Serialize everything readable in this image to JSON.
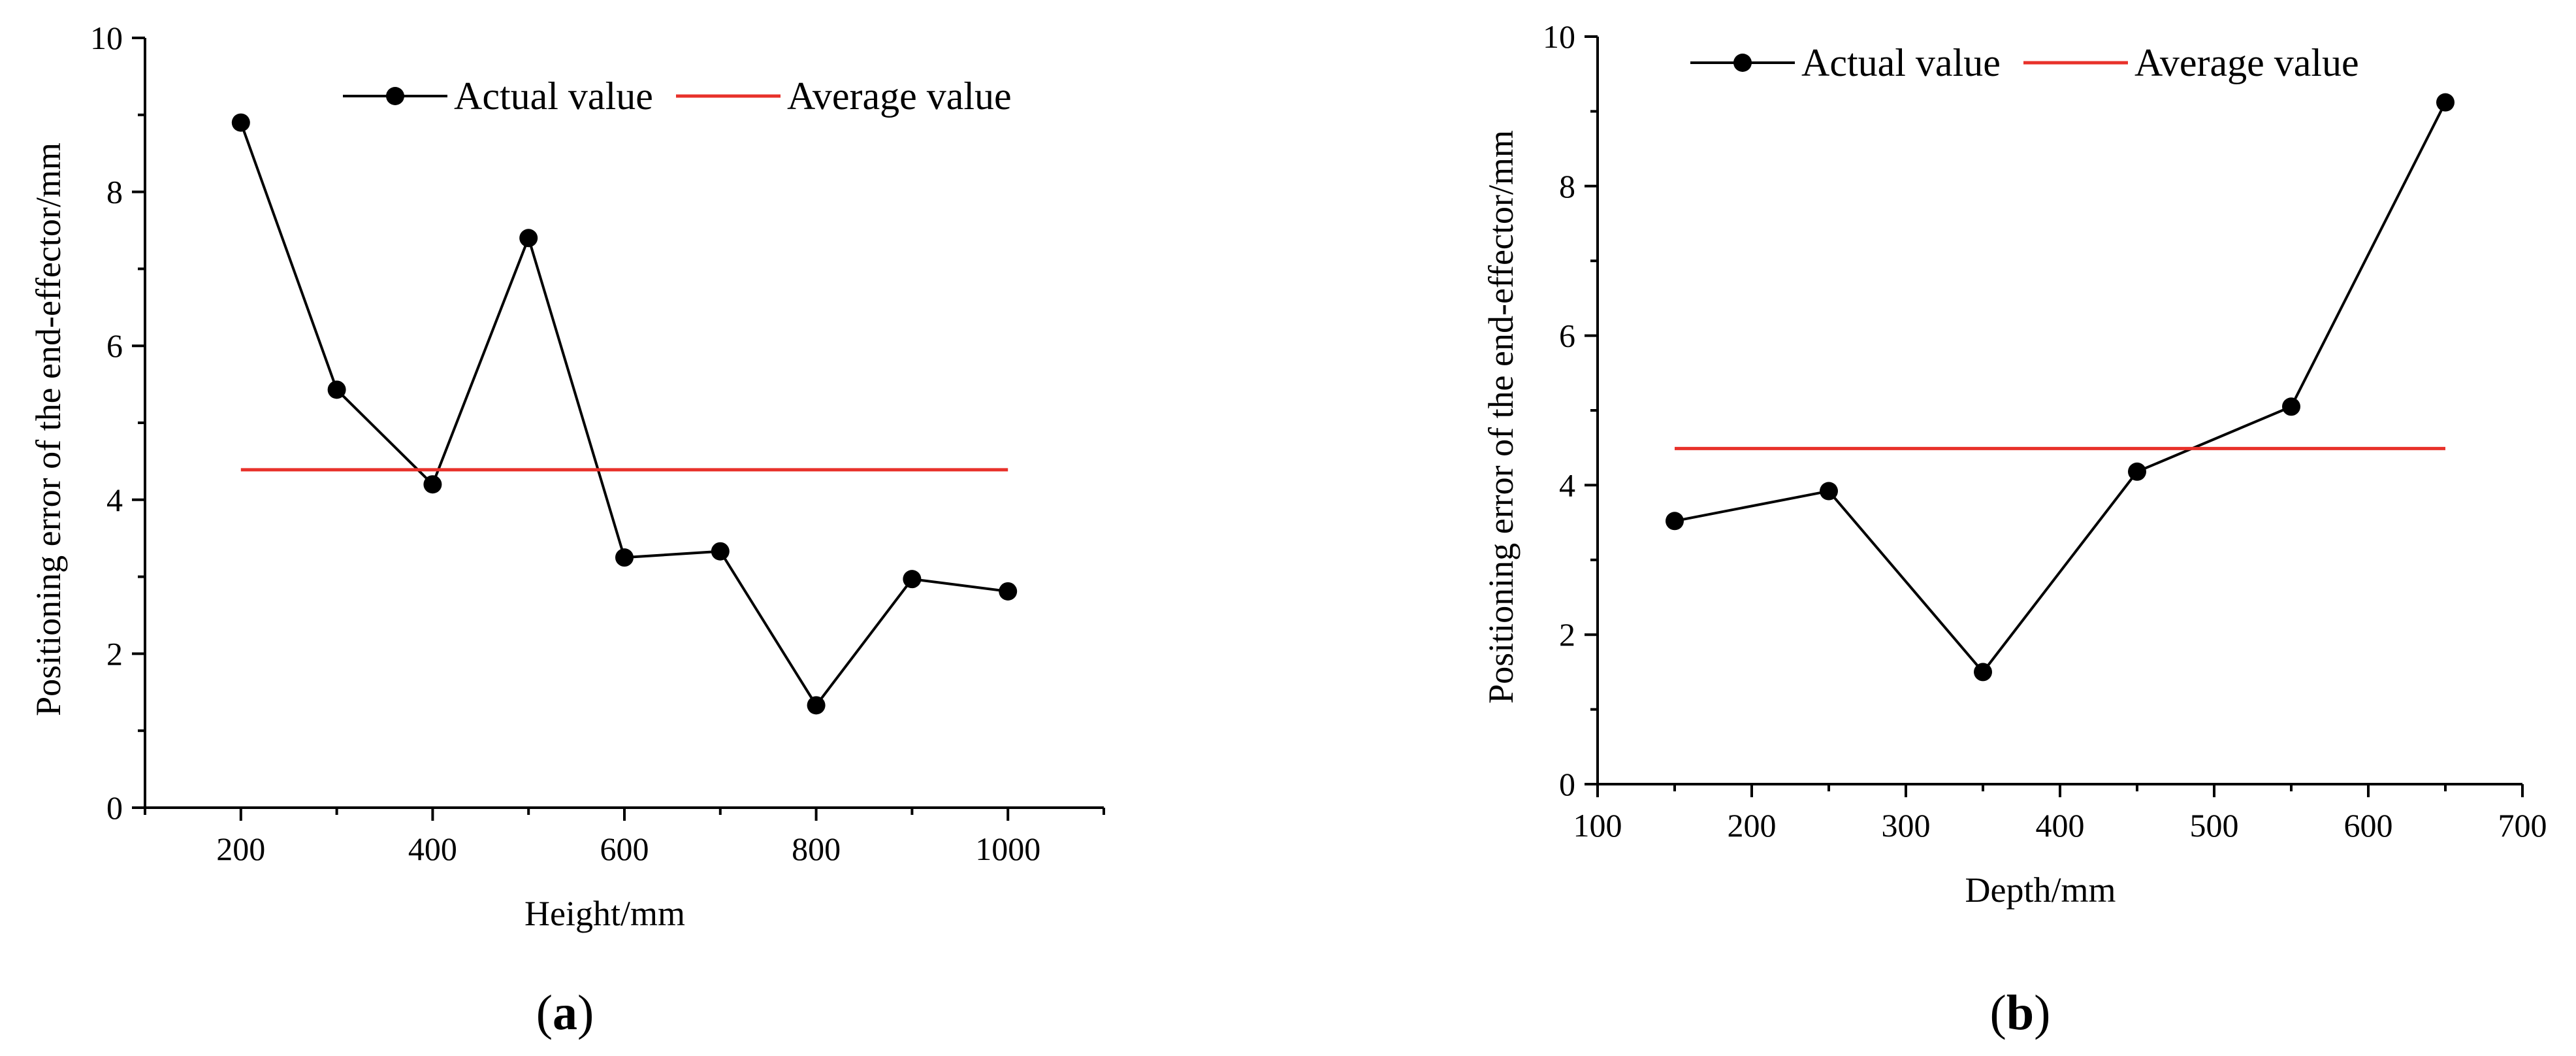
{
  "chart_data": [
    {
      "type": "line",
      "panel_label": {
        "open": "(",
        "letter": "a",
        "close": ")"
      },
      "xlabel": "Height/mm",
      "ylabel": "Positioning error of the end-effector/mm",
      "xlim": [
        100,
        1100
      ],
      "ylim": [
        0,
        10
      ],
      "xticks": [
        200,
        400,
        600,
        800,
        1000
      ],
      "xminor": [
        100,
        300,
        500,
        700,
        900,
        1100
      ],
      "yticks": [
        0,
        2,
        4,
        6,
        8,
        10
      ],
      "yminor": [
        1,
        3,
        5,
        7,
        9
      ],
      "legend_position": "top-center",
      "series": [
        {
          "name": "Actual value",
          "color": "#000000",
          "marker": "circle",
          "x": [
            200,
            300,
            400,
            500,
            600,
            700,
            800,
            900,
            1000
          ],
          "y": [
            8.9,
            5.43,
            4.2,
            7.4,
            3.25,
            3.33,
            1.33,
            2.97,
            2.81
          ]
        },
        {
          "name": "Average value",
          "color": "#e8312a",
          "marker": "none",
          "x": [
            200,
            1000
          ],
          "y": [
            4.39,
            4.39
          ]
        }
      ]
    },
    {
      "type": "line",
      "panel_label": {
        "open": "(",
        "letter": "b",
        "close": ")"
      },
      "xlabel": "Depth/mm",
      "ylabel": "Positioning error of the end-effector/mm",
      "xlim": [
        100,
        700
      ],
      "ylim": [
        0,
        10
      ],
      "xticks": [
        100,
        200,
        300,
        400,
        500,
        600,
        700
      ],
      "xminor": [
        150,
        250,
        350,
        450,
        550,
        650
      ],
      "yticks": [
        0,
        2,
        4,
        6,
        8,
        10
      ],
      "yminor": [
        1,
        3,
        5,
        7,
        9
      ],
      "legend_position": "top-left",
      "series": [
        {
          "name": "Actual value",
          "color": "#000000",
          "marker": "circle",
          "x": [
            150,
            250,
            350,
            450,
            550,
            650
          ],
          "y": [
            3.52,
            3.92,
            1.5,
            4.18,
            5.05,
            9.12
          ]
        },
        {
          "name": "Average value",
          "color": "#e8312a",
          "marker": "none",
          "x": [
            150,
            650
          ],
          "y": [
            4.49,
            4.49
          ]
        }
      ]
    }
  ]
}
